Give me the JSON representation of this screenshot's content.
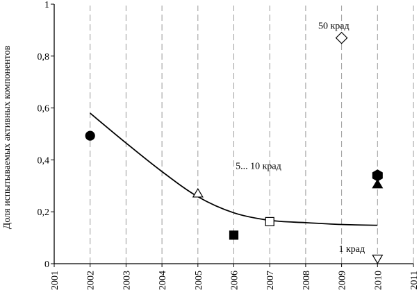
{
  "chart_data": {
    "type": "scatter",
    "ylabel": "Доля испытываемых активных компонентов",
    "xlim": [
      2001,
      2011
    ],
    "ylim": [
      0,
      1
    ],
    "x_ticks": [
      "2001",
      "2002",
      "2003",
      "2004",
      "2005",
      "2006",
      "2007",
      "2008",
      "2009",
      "2010",
      "2011"
    ],
    "y_ticks": [
      {
        "value": 0,
        "label": "0"
      },
      {
        "value": 0.2,
        "label": "0,2"
      },
      {
        "value": 0.4,
        "label": "0,4"
      },
      {
        "value": 0.6,
        "label": "0,6"
      },
      {
        "value": 0.8,
        "label": "0,8"
      },
      {
        "value": 1,
        "label": "1"
      }
    ],
    "grid": "vertical dashed",
    "series": [
      {
        "type": "line",
        "points": [
          {
            "x": 2002,
            "y": 0.58
          },
          {
            "x": 2003,
            "y": 0.465
          },
          {
            "x": 2004,
            "y": 0.355
          },
          {
            "x": 2005,
            "y": 0.258
          },
          {
            "x": 2006,
            "y": 0.196
          },
          {
            "x": 2007,
            "y": 0.167
          },
          {
            "x": 2008,
            "y": 0.158
          },
          {
            "x": 2009,
            "y": 0.151
          },
          {
            "x": 2010,
            "y": 0.148
          }
        ]
      },
      {
        "type": "scatter",
        "points": [
          {
            "x": 2002,
            "y": 0.493,
            "marker": "circle",
            "fill": "#000000"
          },
          {
            "x": 2005,
            "y": 0.27,
            "marker": "triangle-up",
            "fill": "#ffffff"
          },
          {
            "x": 2006,
            "y": 0.11,
            "marker": "square",
            "fill": "#000000"
          },
          {
            "x": 2007,
            "y": 0.162,
            "marker": "square",
            "fill": "#ffffff"
          },
          {
            "x": 2009,
            "y": 0.87,
            "marker": "diamond",
            "fill": "#ffffff"
          },
          {
            "x": 2010,
            "y": 0.34,
            "marker": "hexagon",
            "fill": "#000000"
          },
          {
            "x": 2010,
            "y": 0.305,
            "marker": "triangle-up",
            "fill": "#000000"
          },
          {
            "x": 2010,
            "y": 0.02,
            "marker": "triangle-down",
            "fill": "#ffffff"
          }
        ]
      }
    ],
    "annotations": [
      {
        "text": "50 крад",
        "x": 2008.35,
        "y": 0.905
      },
      {
        "text": "5... 10 крад",
        "x": 2006.05,
        "y": 0.365
      },
      {
        "text": "1 крад",
        "x": 2008.92,
        "y": 0.045
      }
    ]
  }
}
